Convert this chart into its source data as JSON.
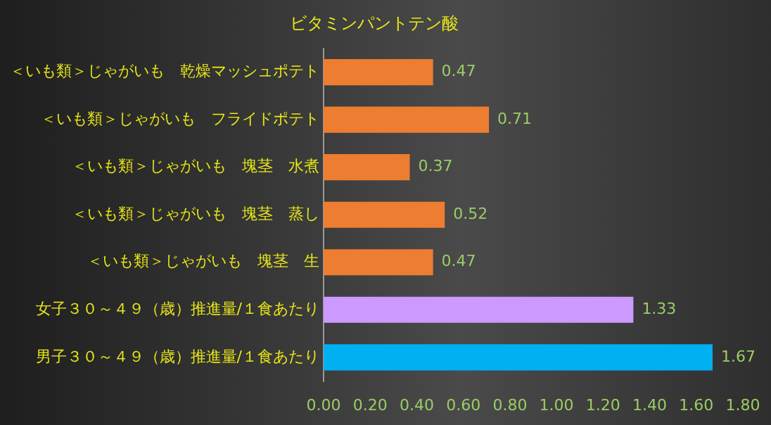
{
  "chart_data": {
    "type": "bar",
    "orientation": "horizontal",
    "title": "ビタミンパントテン酸",
    "categories": [
      "＜いも類＞じゃがいも　乾燥マッシュポテト",
      "＜いも類＞じゃがいも　フライドポテト",
      "＜いも類＞じゃがいも　塊茎　水煮",
      "＜いも類＞じゃがいも　塊茎　蒸し",
      "＜いも類＞じゃがいも　塊茎　生",
      "女子３０～４９（歳）推進量/１食あたり",
      "男子３０～４９（歳）推進量/１食あたり"
    ],
    "values": [
      0.47,
      0.71,
      0.37,
      0.52,
      0.47,
      1.33,
      1.67
    ],
    "colors": [
      "#ed7d31",
      "#ed7d31",
      "#ed7d31",
      "#ed7d31",
      "#ed7d31",
      "#cc99ff",
      "#00b0f0"
    ],
    "xlim": [
      0,
      1.8
    ],
    "xticks": [
      {
        "value": 0,
        "label": "0.00"
      },
      {
        "value": 0.2,
        "label": "0.20"
      },
      {
        "value": 0.4,
        "label": "0.40"
      },
      {
        "value": 0.6,
        "label": "0.60"
      },
      {
        "value": 0.8,
        "label": "0.80"
      },
      {
        "value": 1,
        "label": "1.00"
      },
      {
        "value": 1.2,
        "label": "1.20"
      },
      {
        "value": 1.4,
        "label": "1.40"
      },
      {
        "value": 1.6,
        "label": "1.60"
      },
      {
        "value": 1.8,
        "label": "1.80"
      }
    ],
    "data_labels": true,
    "grid": false,
    "legend": false
  }
}
